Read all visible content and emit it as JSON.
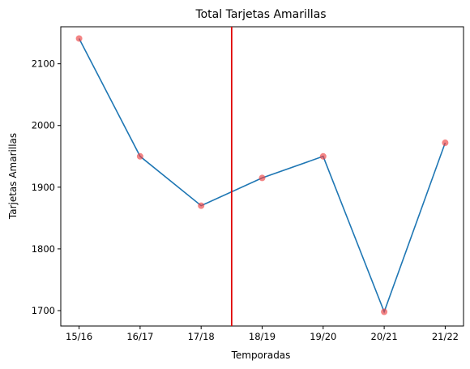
{
  "chart_data": {
    "type": "line",
    "title": "Total Tarjetas Amarillas",
    "xlabel": "Temporadas",
    "ylabel": "Tarjetas Amarillas",
    "categories": [
      "15/16",
      "16/17",
      "17/18",
      "18/19",
      "19/20",
      "20/21",
      "21/22"
    ],
    "series": [
      {
        "values": [
          2141,
          1950,
          1870,
          1915,
          1950,
          1698,
          1972
        ]
      }
    ],
    "yticks": [
      1700,
      1800,
      1900,
      2000,
      2100
    ],
    "ylim": [
      1675,
      2160
    ],
    "xlim": [
      -0.3,
      6.3
    ],
    "vline_x": 2.5,
    "grid": false,
    "colors": {
      "line": "#1f77b4",
      "markers": "#ee4444",
      "vline": "#e00000"
    }
  }
}
